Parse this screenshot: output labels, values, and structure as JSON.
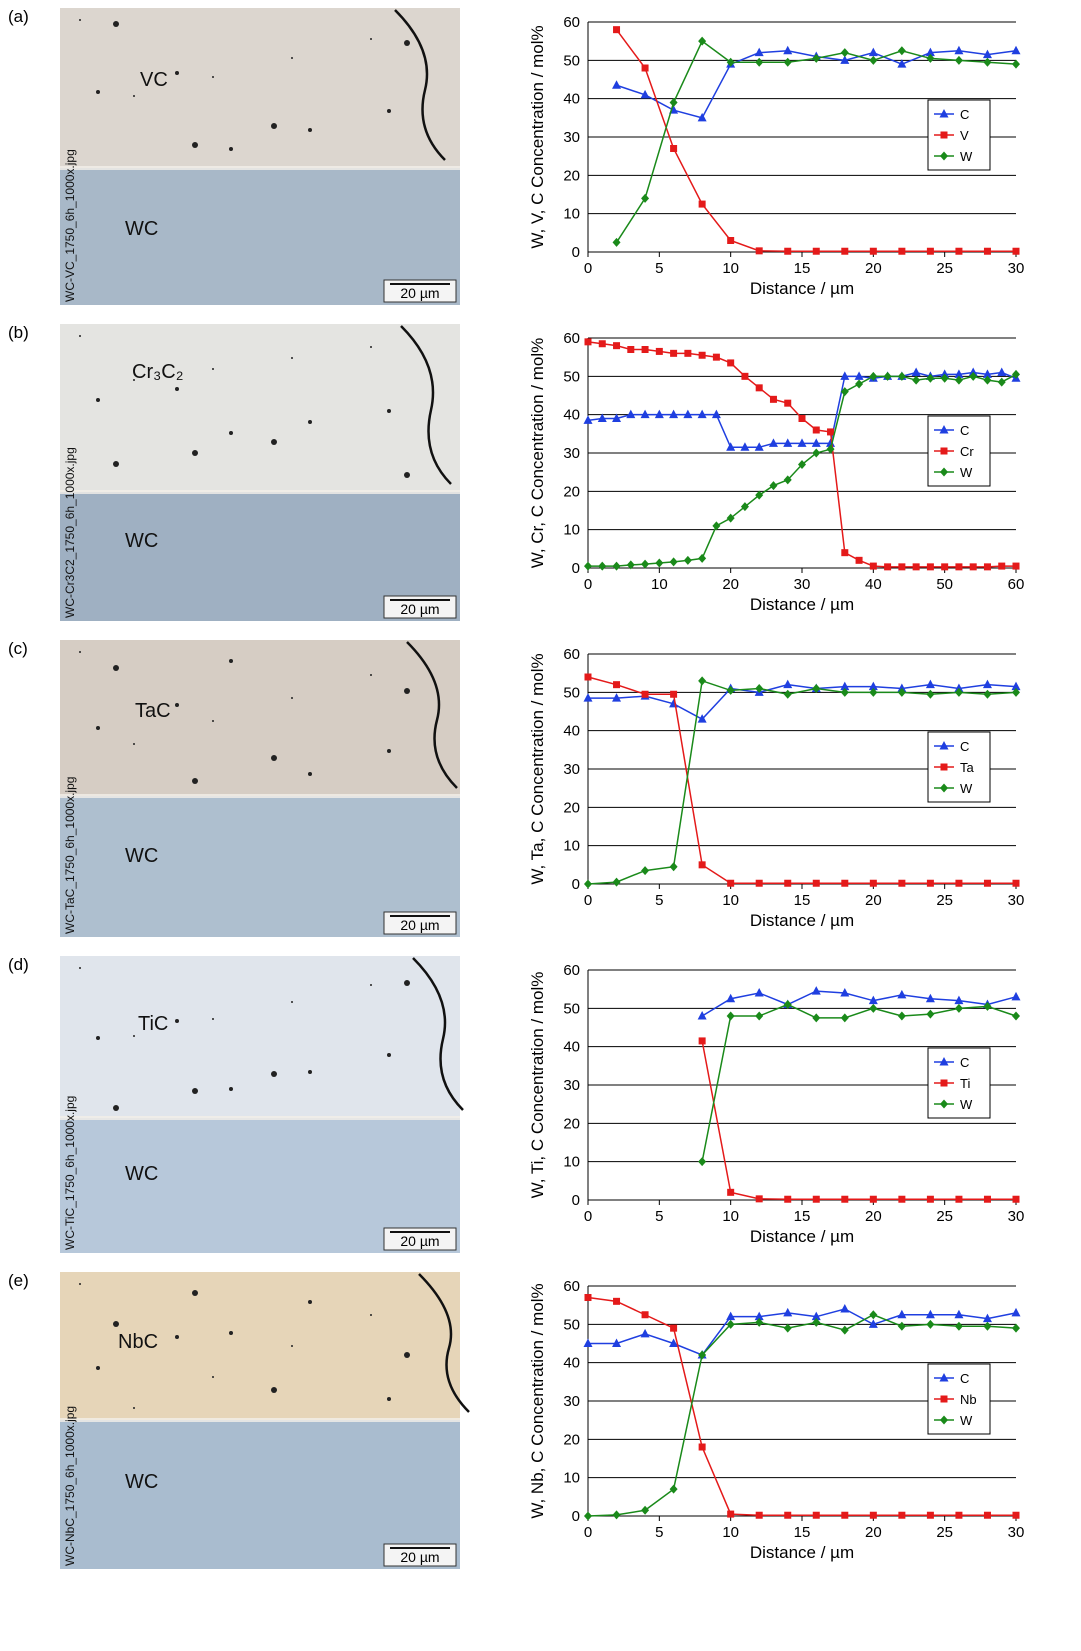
{
  "chart_data": [
    {
      "type": "line",
      "ylabel": "W, V, C Concentration / mol%",
      "xlabel": "Distance / µm",
      "xlim": [
        0,
        30
      ],
      "ylim": [
        0,
        60
      ],
      "xticks": [
        0,
        5,
        10,
        15,
        20,
        25,
        30
      ],
      "yticks": [
        0,
        10,
        20,
        30,
        40,
        50,
        60
      ],
      "grid": "y",
      "legend": "right",
      "x": [
        2,
        4,
        6,
        8,
        10,
        12,
        14,
        16,
        18,
        20,
        22,
        24,
        26,
        28,
        30
      ],
      "series": [
        {
          "name": "C",
          "color": "#1f3fe0",
          "marker": "triangle",
          "values": [
            43.5,
            41,
            37,
            35,
            49,
            52,
            52.5,
            51,
            50,
            52,
            49,
            52,
            52.5,
            51.5,
            52.5
          ]
        },
        {
          "name": "V",
          "color": "#e41a1a",
          "marker": "square",
          "values": [
            58,
            48,
            27,
            12.5,
            3,
            0.3,
            0.2,
            0.2,
            0.2,
            0.2,
            0.2,
            0.2,
            0.2,
            0.2,
            0.2
          ]
        },
        {
          "name": "W",
          "color": "#1a8a1a",
          "marker": "diamond",
          "values": [
            2.5,
            14,
            39,
            55,
            49.5,
            49.5,
            49.5,
            50.5,
            52,
            50,
            52.5,
            50.5,
            50,
            49.5,
            49
          ]
        }
      ]
    },
    {
      "type": "line",
      "ylabel": "W, Cr, C Concentration / mol%",
      "xlabel": "Distance / µm",
      "xlim": [
        0,
        60
      ],
      "ylim": [
        0,
        60
      ],
      "xticks": [
        0,
        10,
        20,
        30,
        40,
        50,
        60
      ],
      "yticks": [
        0,
        10,
        20,
        30,
        40,
        50,
        60
      ],
      "grid": "y",
      "legend": "right",
      "x": [
        0,
        2,
        4,
        6,
        8,
        10,
        12,
        14,
        16,
        18,
        20,
        22,
        24,
        26,
        28,
        30,
        32,
        34,
        36,
        38,
        40,
        42,
        44,
        46,
        48,
        50,
        52,
        54,
        56,
        58,
        60
      ],
      "series": [
        {
          "name": "C",
          "color": "#1f3fe0",
          "marker": "triangle",
          "values": [
            38.5,
            39,
            39,
            40,
            40,
            40,
            40,
            40,
            40,
            40,
            31.5,
            31.5,
            31.5,
            32.5,
            32.5,
            32.5,
            32.5,
            32.5,
            50,
            50,
            49.5,
            50,
            50,
            51,
            50,
            50.5,
            50.5,
            51,
            50.5,
            51,
            49.5
          ]
        },
        {
          "name": "Cr",
          "color": "#e41a1a",
          "marker": "square",
          "values": [
            59,
            58.5,
            58,
            57,
            57,
            56.5,
            56,
            56,
            55.5,
            55,
            53.5,
            50,
            47,
            44,
            43,
            39,
            36,
            35.5,
            4,
            2,
            0.5,
            0.3,
            0.3,
            0.3,
            0.3,
            0.3,
            0.3,
            0.3,
            0.3,
            0.5,
            0.5
          ]
        },
        {
          "name": "W",
          "color": "#1a8a1a",
          "marker": "diamond",
          "values": [
            0.5,
            0.5,
            0.5,
            0.8,
            1,
            1.3,
            1.6,
            2,
            2.5,
            11,
            13,
            16,
            19,
            21.5,
            23,
            27,
            30,
            31,
            46,
            48,
            50,
            50,
            50,
            49,
            49.5,
            49.5,
            49,
            50,
            49,
            48.5,
            50.5
          ]
        }
      ]
    },
    {
      "type": "line",
      "ylabel": "W, Ta, C Concentration / mol%",
      "xlabel": "Distance / µm",
      "xlim": [
        0,
        30
      ],
      "ylim": [
        0,
        60
      ],
      "xticks": [
        0,
        5,
        10,
        15,
        20,
        25,
        30
      ],
      "yticks": [
        0,
        10,
        20,
        30,
        40,
        50,
        60
      ],
      "grid": "y",
      "legend": "right",
      "x": [
        0,
        2,
        4,
        6,
        8,
        10,
        12,
        14,
        16,
        18,
        20,
        22,
        24,
        26,
        28,
        30
      ],
      "series": [
        {
          "name": "C",
          "color": "#1f3fe0",
          "marker": "triangle",
          "values": [
            48.5,
            48.5,
            49,
            47,
            43,
            51,
            50,
            52,
            51,
            51.5,
            51.5,
            51,
            52,
            51,
            52,
            51.5
          ]
        },
        {
          "name": "Ta",
          "color": "#e41a1a",
          "marker": "square",
          "values": [
            54,
            52,
            49.5,
            49.5,
            5,
            0.2,
            0.2,
            0.2,
            0.2,
            0.2,
            0.2,
            0.2,
            0.2,
            0.2,
            0.2,
            0.2
          ]
        },
        {
          "name": "W",
          "color": "#1a8a1a",
          "marker": "diamond",
          "values": [
            0,
            0.5,
            3.5,
            4.5,
            53,
            50.5,
            51,
            49.5,
            51,
            50,
            50,
            50,
            49.5,
            50,
            49.5,
            50
          ]
        }
      ]
    },
    {
      "type": "line",
      "ylabel": "W, Ti, C Concentration / mol%",
      "xlabel": "Distance / µm",
      "xlim": [
        0,
        30
      ],
      "ylim": [
        0,
        60
      ],
      "xticks": [
        0,
        5,
        10,
        15,
        20,
        25,
        30
      ],
      "yticks": [
        0,
        10,
        20,
        30,
        40,
        50,
        60
      ],
      "grid": "y",
      "legend": "right",
      "x": [
        8,
        10,
        12,
        14,
        16,
        18,
        20,
        22,
        24,
        26,
        28,
        30
      ],
      "series": [
        {
          "name": "C",
          "color": "#1f3fe0",
          "marker": "triangle",
          "values": [
            48,
            52.5,
            54,
            51,
            54.5,
            54,
            52,
            53.5,
            52.5,
            52,
            51,
            53
          ]
        },
        {
          "name": "Ti",
          "color": "#e41a1a",
          "marker": "square",
          "values": [
            41.5,
            2,
            0.3,
            0.2,
            0.2,
            0.2,
            0.2,
            0.2,
            0.2,
            0.2,
            0.2,
            0.2
          ]
        },
        {
          "name": "W",
          "color": "#1a8a1a",
          "marker": "diamond",
          "values": [
            10,
            48,
            48,
            51,
            47.5,
            47.5,
            50,
            48,
            48.5,
            50,
            50.5,
            48
          ]
        }
      ]
    },
    {
      "type": "line",
      "ylabel": "W, Nb, C Concentration / mol%",
      "xlabel": "Distance / µm",
      "xlim": [
        0,
        30
      ],
      "ylim": [
        0,
        60
      ],
      "xticks": [
        0,
        5,
        10,
        15,
        20,
        25,
        30
      ],
      "yticks": [
        0,
        10,
        20,
        30,
        40,
        50,
        60
      ],
      "grid": "y",
      "legend": "right",
      "x": [
        0,
        2,
        4,
        6,
        8,
        10,
        12,
        14,
        16,
        18,
        20,
        22,
        24,
        26,
        28,
        30
      ],
      "series": [
        {
          "name": "C",
          "color": "#1f3fe0",
          "marker": "triangle",
          "values": [
            45,
            45,
            47.5,
            45,
            42,
            52,
            52,
            53,
            52,
            54,
            50,
            52.5,
            52.5,
            52.5,
            51.5,
            53
          ]
        },
        {
          "name": "Nb",
          "color": "#e41a1a",
          "marker": "square",
          "values": [
            57,
            56,
            52.5,
            49,
            18,
            0.5,
            0.2,
            0.2,
            0.2,
            0.2,
            0.2,
            0.2,
            0.2,
            0.2,
            0.2,
            0.2
          ]
        },
        {
          "name": "W",
          "color": "#1a8a1a",
          "marker": "diamond",
          "values": [
            0,
            0.3,
            1.5,
            7,
            42,
            50,
            50.5,
            49,
            50.5,
            48.5,
            52.5,
            49.5,
            50,
            49.5,
            49.5,
            49
          ]
        }
      ]
    }
  ],
  "micrographs": [
    {
      "panel": "(a)",
      "phase": "VC",
      "substrate": "WC",
      "filename": "WC-VC_1750_6h_1000x.jpg",
      "scale": "20 µm"
    },
    {
      "panel": "(b)",
      "phase": "Cr₃C₂",
      "substrate": "WC",
      "filename": "WC-Cr3C2_1750_6h_1000x.jpg",
      "scale": "20 µm"
    },
    {
      "panel": "(c)",
      "phase": "TaC",
      "substrate": "WC",
      "filename": "WC-TaC_1750_6h_1000x.jpg",
      "scale": "20 µm"
    },
    {
      "panel": "(d)",
      "phase": "TiC",
      "substrate": "WC",
      "filename": "WC-TiC_1750_6h_1000x.jpg",
      "scale": "20 µm"
    },
    {
      "panel": "(e)",
      "phase": "NbC",
      "substrate": "WC",
      "filename": "WC-NbC_1750_6h_1000x.jpg",
      "scale": "20 µm"
    }
  ]
}
